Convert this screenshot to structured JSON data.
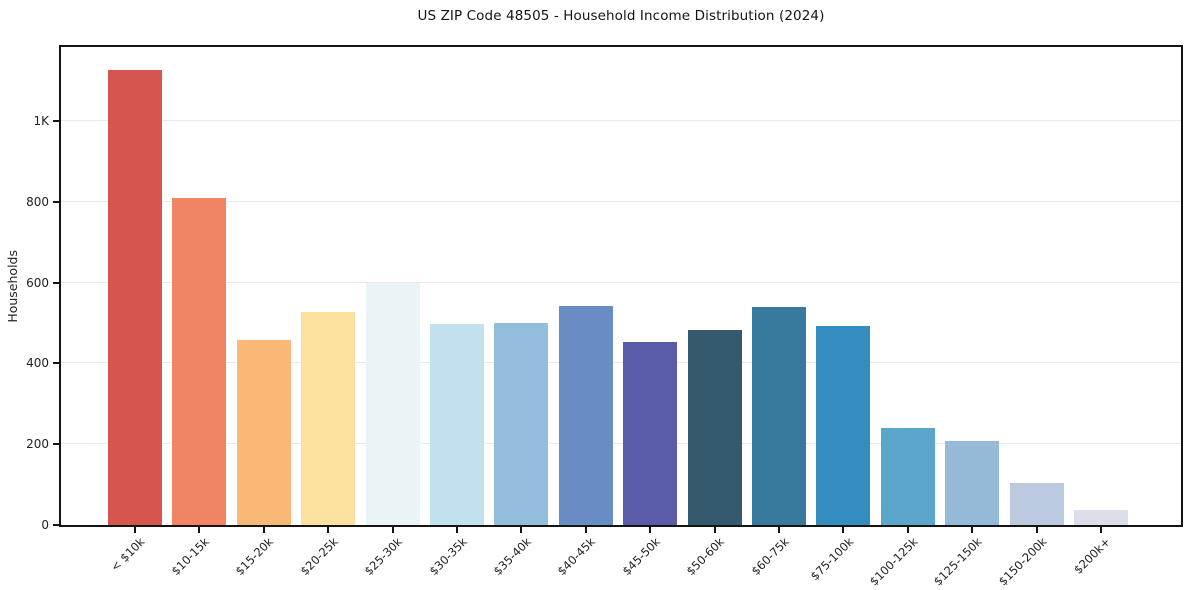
{
  "title": "US ZIP Code 48505 - Household Income Distribution (2024)",
  "chart_data": {
    "type": "bar",
    "title": "US ZIP Code 48505 - Household Income Distribution (2024)",
    "xlabel": "",
    "ylabel": "Households",
    "categories": [
      "< $10k",
      "$10-15k",
      "$15-20k",
      "$20-25k",
      "$25-30k",
      "$30-35k",
      "$35-40k",
      "$40-45k",
      "$45-50k",
      "$50-60k",
      "$60-75k",
      "$75-100k",
      "$100-125k",
      "$125-150k",
      "$150-200k",
      "$200k+"
    ],
    "values": [
      1127,
      810,
      457,
      528,
      600,
      497,
      500,
      542,
      453,
      483,
      540,
      492,
      240,
      207,
      105,
      36
    ],
    "bar_colors": [
      "#d6554f",
      "#f08465",
      "#fab877",
      "#fce09e",
      "#e8f4f6",
      "#c1e1ee",
      "#92bddb",
      "#688dc4",
      "#5b5ca9",
      "#365a6d",
      "#377a9e",
      "#348cbf",
      "#5ba7cc",
      "#94bad8",
      "#bccae0",
      "#dcdee9"
    ],
    "yticks": [
      {
        "label": "0",
        "value": 0
      },
      {
        "label": "200",
        "value": 200
      },
      {
        "label": "400",
        "value": 400
      },
      {
        "label": "600",
        "value": 600
      },
      {
        "label": "800",
        "value": 800
      },
      {
        "label": "1K",
        "value": 1000
      }
    ],
    "ylim": [
      0,
      1183
    ],
    "grid": true,
    "legend_position": "none",
    "xtick_rotation_deg": 45,
    "colors": {
      "grid": "#e9e9e9",
      "spine": "#141414",
      "text": "#1f1f1f",
      "background": "#ffffff"
    }
  }
}
